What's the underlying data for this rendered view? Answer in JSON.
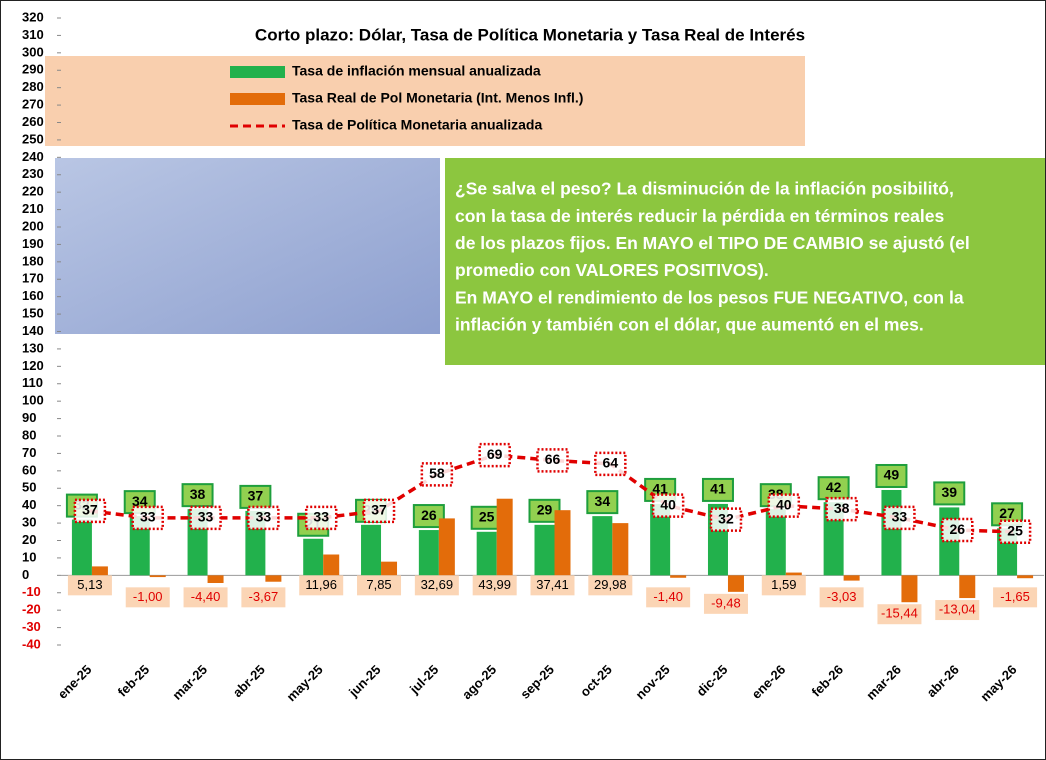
{
  "chart_data": {
    "type": "bar",
    "title": "Corto plazo: Dólar, Tasa de Política Monetaria y Tasa Real de Interés",
    "annotation": [
      "¿Se salva el peso? La disminución de la inflación posibilitó,",
      "con la tasa de interés reducir la pérdida en términos reales",
      "de los plazos fijos. En MAYO el TIPO DE CAMBIO se ajustó (el",
      "promedio con VALORES POSITIVOS).",
      "En MAYO el rendimiento de los pesos FUE NEGATIVO, con la",
      "inflación y también con el dólar, que aumentó en el mes."
    ],
    "categories": [
      "ene-25",
      "feb-25",
      "mar-25",
      "abr-25",
      "may-25",
      "jun-25",
      "jul-25",
      "ago-25",
      "sep-25",
      "oct-25",
      "nov-25",
      "dic-25",
      "ene-26",
      "feb-26",
      "mar-26",
      "abr-26",
      "may-26"
    ],
    "series": [
      {
        "name": "Tasa de inflación mensual anualizada",
        "type": "bar",
        "color": "#22b14c",
        "values": [
          32,
          34,
          38,
          37,
          21,
          29,
          26,
          25,
          29,
          34,
          41,
          41,
          38,
          42,
          49,
          39,
          27
        ]
      },
      {
        "name": "Tasa Real de Pol Monetaria (Int. Menos Infl.)",
        "type": "bar",
        "color": "#e36c0a",
        "values": [
          5.13,
          -1.0,
          -4.4,
          -3.67,
          11.96,
          7.85,
          32.69,
          43.99,
          37.41,
          29.98,
          -1.4,
          -9.48,
          1.59,
          -3.03,
          -15.44,
          -13.04,
          -1.65
        ],
        "value_labels": [
          "5,13",
          "-1,00",
          "-4,40",
          "-3,67",
          "11,96",
          "7,85",
          "32,69",
          "43,99",
          "37,41",
          "29,98",
          "-1,40",
          "-9,48",
          "1,59",
          "-3,03",
          "-15,44",
          "-13,04",
          "-1,65"
        ]
      },
      {
        "name": "Tasa de Política Monetaria anualizada",
        "type": "line",
        "color": "#e00000",
        "values": [
          37,
          33,
          33,
          33,
          33,
          37,
          58,
          69,
          66,
          64,
          40,
          32,
          40,
          38,
          33,
          26,
          25
        ]
      }
    ],
    "ylim": [
      -40,
      320
    ],
    "yticks": [
      -40,
      -30,
      -20,
      -10,
      0,
      10,
      20,
      30,
      40,
      50,
      60,
      70,
      80,
      90,
      100,
      110,
      120,
      130,
      140,
      150,
      160,
      170,
      180,
      190,
      200,
      210,
      220,
      230,
      240,
      250,
      260,
      270,
      280,
      290,
      300,
      310,
      320
    ],
    "grid": false
  }
}
